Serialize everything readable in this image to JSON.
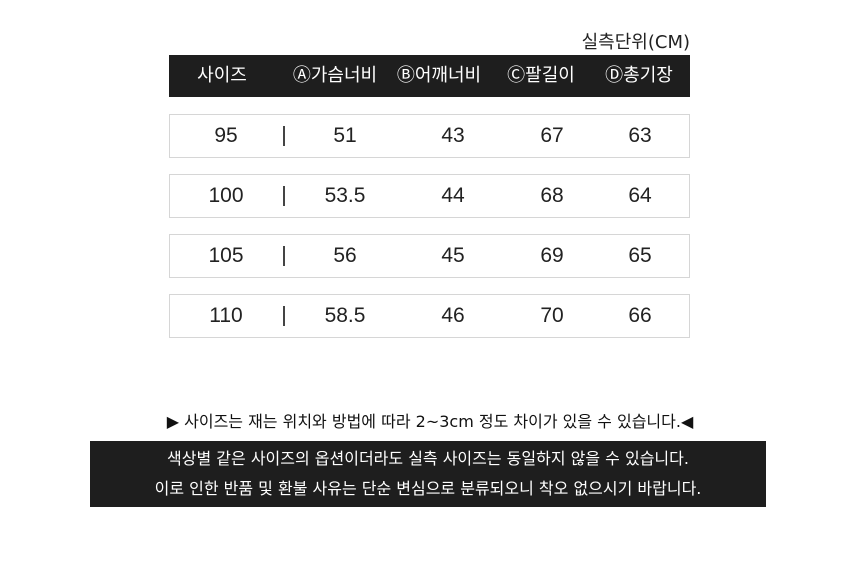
{
  "unit_label": "실측단위(CM)",
  "columns": [
    "사이즈",
    "Ⓐ가슴너비",
    "Ⓑ어깨너비",
    "Ⓒ팔길이",
    "Ⓓ총기장"
  ],
  "rows": [
    {
      "size": "95",
      "chest": "51",
      "shoulder": "43",
      "sleeve": "67",
      "length": "63"
    },
    {
      "size": "100",
      "chest": "53.5",
      "shoulder": "44",
      "sleeve": "68",
      "length": "64"
    },
    {
      "size": "105",
      "chest": "56",
      "shoulder": "45",
      "sleeve": "69",
      "length": "65"
    },
    {
      "size": "110",
      "chest": "58.5",
      "shoulder": "46",
      "sleeve": "70",
      "length": "66"
    }
  ],
  "notice": "▶ 사이즈는 재는 위치와 방법에 따라 2~3cm 정도 차이가 있을 수 있습니다.◀",
  "warning_lines": [
    "색상별 같은 사이즈의 옵션이더라도 실측 사이즈는 동일하지 않을 수 있습니다.",
    "이로 인한 반품 및 환불 사유는 단순 변심으로 분류되오니 착오 없으시기 바랍니다."
  ],
  "colors": {
    "header_bg": "#1e1e1e",
    "row_border": "#d6d6d6"
  }
}
